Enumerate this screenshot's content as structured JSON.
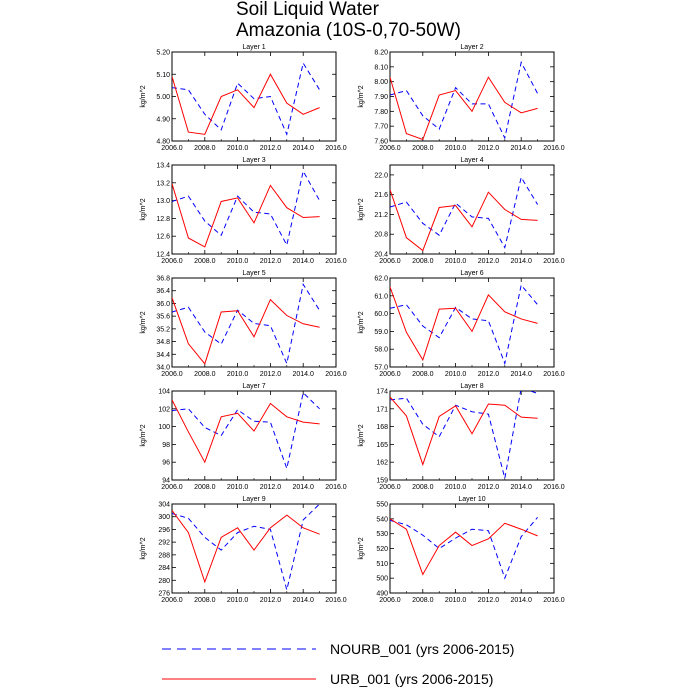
{
  "title": {
    "line1": "Soil Liquid Water",
    "line2": "Amazonia (10S-0,70-50W)"
  },
  "colors": {
    "NOURB_001": "#0000ff",
    "URB_001": "#ff0000"
  },
  "legend": [
    {
      "key": "NOURB_001",
      "label": "NOURB_001 (yrs 2006-2015)",
      "style": "dashed"
    },
    {
      "key": "URB_001",
      "label": "URB_001 (yrs 2006-2015)",
      "style": "solid"
    }
  ],
  "chart_data": [
    {
      "type": "line",
      "title": "Layer 1",
      "ylabel": "kg/m^2",
      "x": [
        2006,
        2007,
        2008,
        2009,
        2010,
        2011,
        2012,
        2013,
        2014,
        2015
      ],
      "xlim": [
        2006,
        2016
      ],
      "ylim": [
        4.8,
        5.2
      ],
      "xticks": [
        "2006.0",
        "2008.0",
        "2010.0",
        "2012.0",
        "2014.0",
        "2016.0"
      ],
      "yticks": [
        "4.80",
        "4.90",
        "5.00",
        "5.10",
        "5.20"
      ],
      "series": [
        {
          "name": "NOURB_001",
          "values": [
            5.04,
            5.03,
            4.92,
            4.85,
            5.06,
            4.99,
            5.0,
            4.83,
            5.15,
            5.03
          ]
        },
        {
          "name": "URB_001",
          "values": [
            5.09,
            4.84,
            4.83,
            5.0,
            5.03,
            4.95,
            5.1,
            4.97,
            4.92,
            4.95
          ]
        }
      ]
    },
    {
      "type": "line",
      "title": "Layer 2",
      "ylabel": "kg/m^2",
      "x": [
        2006,
        2007,
        2008,
        2009,
        2010,
        2011,
        2012,
        2013,
        2014,
        2015
      ],
      "xlim": [
        2006,
        2016
      ],
      "ylim": [
        7.6,
        8.2
      ],
      "xticks": [
        "2006.0",
        "2008.0",
        "2010.0",
        "2012.0",
        "2014.0",
        "2016.0"
      ],
      "yticks": [
        "7.60",
        "7.70",
        "7.80",
        "7.90",
        "8.00",
        "8.10",
        "8.20"
      ],
      "series": [
        {
          "name": "NOURB_001",
          "values": [
            7.91,
            7.94,
            7.77,
            7.68,
            7.96,
            7.85,
            7.85,
            7.62,
            8.13,
            7.92
          ]
        },
        {
          "name": "URB_001",
          "values": [
            8.03,
            7.65,
            7.61,
            7.91,
            7.94,
            7.8,
            8.03,
            7.86,
            7.79,
            7.82
          ]
        }
      ]
    },
    {
      "type": "line",
      "title": "Layer 3",
      "ylabel": "kg/m^2",
      "x": [
        2006,
        2007,
        2008,
        2009,
        2010,
        2011,
        2012,
        2013,
        2014,
        2015
      ],
      "xlim": [
        2006,
        2016
      ],
      "ylim": [
        12.4,
        13.4
      ],
      "xticks": [
        "2006.0",
        "2008.0",
        "2010.0",
        "2012.0",
        "2014.0",
        "2016.0"
      ],
      "yticks": [
        "12.4",
        "12.6",
        "12.8",
        "13.0",
        "13.2",
        "13.4"
      ],
      "series": [
        {
          "name": "NOURB_001",
          "values": [
            12.99,
            13.05,
            12.77,
            12.61,
            13.05,
            12.87,
            12.85,
            12.5,
            13.33,
            13.0
          ]
        },
        {
          "name": "URB_001",
          "values": [
            13.19,
            12.58,
            12.48,
            12.99,
            13.03,
            12.75,
            13.17,
            12.92,
            12.81,
            12.82
          ]
        }
      ]
    },
    {
      "type": "line",
      "title": "Layer 4",
      "ylabel": "kg/m^2",
      "x": [
        2006,
        2007,
        2008,
        2009,
        2010,
        2011,
        2012,
        2013,
        2014,
        2015
      ],
      "xlim": [
        2006,
        2016
      ],
      "ylim": [
        20.4,
        22.2
      ],
      "xticks": [
        "2006.0",
        "2008.0",
        "2010.0",
        "2012.0",
        "2014.0",
        "2016.0"
      ],
      "yticks": [
        "20.4",
        "20.8",
        "21.2",
        "21.6",
        "22.0"
      ],
      "series": [
        {
          "name": "NOURB_001",
          "values": [
            21.35,
            21.45,
            21.02,
            20.78,
            21.43,
            21.15,
            21.12,
            20.53,
            21.95,
            21.4
          ]
        },
        {
          "name": "URB_001",
          "values": [
            21.7,
            20.73,
            20.47,
            21.34,
            21.38,
            20.95,
            21.65,
            21.3,
            21.1,
            21.08
          ]
        }
      ]
    },
    {
      "type": "line",
      "title": "Layer 5",
      "ylabel": "kg/m^2",
      "x": [
        2006,
        2007,
        2008,
        2009,
        2010,
        2011,
        2012,
        2013,
        2014,
        2015
      ],
      "xlim": [
        2006,
        2016
      ],
      "ylim": [
        34.0,
        36.8
      ],
      "xticks": [
        "2006.0",
        "2008.0",
        "2010.0",
        "2012.0",
        "2014.0",
        "2016.0"
      ],
      "yticks": [
        "34.0",
        "34.4",
        "34.8",
        "35.2",
        "35.6",
        "36.0",
        "36.4",
        "36.8"
      ],
      "series": [
        {
          "name": "NOURB_001",
          "values": [
            35.73,
            35.88,
            35.1,
            34.72,
            35.79,
            35.37,
            35.3,
            34.11,
            36.6,
            35.78
          ]
        },
        {
          "name": "URB_001",
          "values": [
            36.18,
            34.73,
            34.1,
            35.73,
            35.77,
            34.95,
            36.12,
            35.62,
            35.36,
            35.25
          ]
        }
      ]
    },
    {
      "type": "line",
      "title": "Layer 6",
      "ylabel": "kg/m^2",
      "x": [
        2006,
        2007,
        2008,
        2009,
        2010,
        2011,
        2012,
        2013,
        2014,
        2015
      ],
      "xlim": [
        2006,
        2016
      ],
      "ylim": [
        57.0,
        62.0
      ],
      "xticks": [
        "2006.0",
        "2008.0",
        "2010.0",
        "2012.0",
        "2014.0",
        "2016.0"
      ],
      "yticks": [
        "57.0",
        "58.0",
        "59.0",
        "60.0",
        "61.0",
        "62.0"
      ],
      "series": [
        {
          "name": "NOURB_001",
          "values": [
            60.3,
            60.5,
            59.3,
            58.65,
            60.35,
            59.7,
            59.6,
            57.2,
            61.6,
            60.5
          ]
        },
        {
          "name": "URB_001",
          "values": [
            61.5,
            58.95,
            57.4,
            60.25,
            60.3,
            59.0,
            61.05,
            60.1,
            59.7,
            59.45
          ]
        }
      ]
    },
    {
      "type": "line",
      "title": "Layer 7",
      "ylabel": "kg/m^2",
      "x": [
        2006,
        2007,
        2008,
        2009,
        2010,
        2011,
        2012,
        2013,
        2014,
        2015
      ],
      "xlim": [
        2006,
        2016
      ],
      "ylim": [
        94,
        104
      ],
      "xticks": [
        "2006.0",
        "2008.0",
        "2010.0",
        "2012.0",
        "2014.0",
        "2016.0"
      ],
      "yticks": [
        "94",
        "96",
        "98",
        "100",
        "102",
        "104"
      ],
      "series": [
        {
          "name": "NOURB_001",
          "values": [
            101.8,
            102.0,
            99.9,
            99.0,
            101.9,
            100.6,
            100.5,
            95.3,
            103.8,
            102.0
          ]
        },
        {
          "name": "URB_001",
          "values": [
            103.0,
            99.4,
            96.0,
            101.1,
            101.5,
            99.5,
            102.6,
            101.1,
            100.5,
            100.3
          ]
        }
      ]
    },
    {
      "type": "line",
      "title": "Layer 8",
      "ylabel": "kg/m^2",
      "x": [
        2006,
        2007,
        2008,
        2009,
        2010,
        2011,
        2012,
        2013,
        2014,
        2015
      ],
      "xlim": [
        2006,
        2016
      ],
      "ylim": [
        159,
        174
      ],
      "xticks": [
        "2006.0",
        "2008.0",
        "2010.0",
        "2012.0",
        "2014.0",
        "2016.0"
      ],
      "yticks": [
        "159",
        "162",
        "165",
        "168",
        "171",
        "174"
      ],
      "series": [
        {
          "name": "NOURB_001",
          "values": [
            172.5,
            172.8,
            168.4,
            166.3,
            171.6,
            170.5,
            170.1,
            159.3,
            174.5,
            173.6
          ]
        },
        {
          "name": "URB_001",
          "values": [
            173.0,
            169.8,
            161.6,
            169.7,
            171.5,
            166.8,
            171.8,
            171.6,
            169.6,
            169.4
          ]
        }
      ]
    },
    {
      "type": "line",
      "title": "Layer 9",
      "ylabel": "kg/m^2",
      "x": [
        2006,
        2007,
        2008,
        2009,
        2010,
        2011,
        2012,
        2013,
        2014,
        2015
      ],
      "xlim": [
        2006,
        2016
      ],
      "ylim": [
        276,
        304
      ],
      "xticks": [
        "2006.0",
        "2008.0",
        "2010.0",
        "2012.0",
        "2014.0",
        "2016.0"
      ],
      "yticks": [
        "276",
        "280",
        "284",
        "288",
        "292",
        "296",
        "300",
        "304"
      ],
      "series": [
        {
          "name": "NOURB_001",
          "values": [
            301.0,
            299.5,
            293.5,
            289.5,
            295.0,
            297.0,
            296.0,
            277.0,
            299.0,
            304.0
          ]
        },
        {
          "name": "URB_001",
          "values": [
            302.0,
            295.0,
            279.5,
            293.5,
            296.5,
            289.5,
            296.5,
            300.5,
            296.5,
            294.5
          ]
        }
      ]
    },
    {
      "type": "line",
      "title": "Layer 10",
      "ylabel": "kg/m^2",
      "x": [
        2006,
        2007,
        2008,
        2009,
        2010,
        2011,
        2012,
        2013,
        2014,
        2015
      ],
      "xlim": [
        2006,
        2016
      ],
      "ylim": [
        490,
        550
      ],
      "xticks": [
        "2006.0",
        "2008.0",
        "2010.0",
        "2012.0",
        "2014.0",
        "2016.0"
      ],
      "yticks": [
        "490",
        "500",
        "510",
        "520",
        "530",
        "540",
        "550"
      ],
      "series": [
        {
          "name": "NOURB_001",
          "values": [
            539.0,
            536.0,
            529.0,
            520.0,
            527.0,
            533.0,
            532.0,
            500.0,
            528.0,
            541.0
          ]
        },
        {
          "name": "URB_001",
          "values": [
            540.0,
            533.0,
            502.5,
            522.0,
            531.0,
            522.0,
            526.5,
            537.0,
            533.0,
            528.5
          ]
        }
      ]
    }
  ]
}
